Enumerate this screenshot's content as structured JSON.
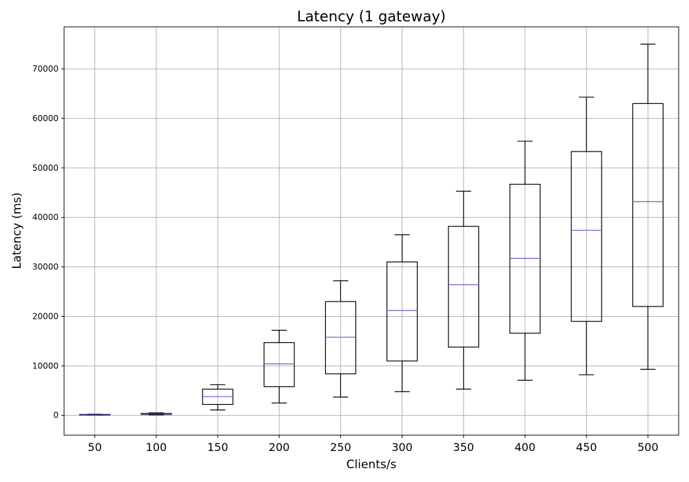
{
  "chart_data": {
    "type": "boxplot",
    "title": "Latency (1 gateway)",
    "xlabel": "Clients/s",
    "ylabel": "Latency (ms)",
    "ylim": [
      -4000,
      78500
    ],
    "yticks": [
      0,
      10000,
      20000,
      30000,
      40000,
      50000,
      60000,
      70000
    ],
    "grid": true,
    "median_color": "#6a5acd",
    "box_color": "#000000",
    "categories": [
      "50",
      "100",
      "150",
      "200",
      "250",
      "300",
      "350",
      "400",
      "450",
      "500"
    ],
    "boxes": [
      {
        "whisker_low": 50,
        "q1": 100,
        "median": 150,
        "q3": 200,
        "whisker_high": 250
      },
      {
        "whisker_low": 100,
        "q1": 200,
        "median": 300,
        "q3": 400,
        "whisker_high": 500
      },
      {
        "whisker_low": 1100,
        "q1": 2200,
        "median": 3800,
        "q3": 5300,
        "whisker_high": 6200
      },
      {
        "whisker_low": 2500,
        "q1": 5800,
        "median": 10400,
        "q3": 14700,
        "whisker_high": 17200
      },
      {
        "whisker_low": 3700,
        "q1": 8400,
        "median": 15800,
        "q3": 23000,
        "whisker_high": 27200
      },
      {
        "whisker_low": 4800,
        "q1": 11000,
        "median": 21200,
        "q3": 31000,
        "whisker_high": 36500
      },
      {
        "whisker_low": 5300,
        "q1": 13800,
        "median": 26400,
        "q3": 38200,
        "whisker_high": 45300
      },
      {
        "whisker_low": 7100,
        "q1": 16600,
        "median": 31700,
        "q3": 46700,
        "whisker_high": 55400
      },
      {
        "whisker_low": 8200,
        "q1": 19000,
        "median": 37400,
        "q3": 53300,
        "whisker_high": 64300
      },
      {
        "whisker_low": 9300,
        "q1": 22000,
        "median": 43200,
        "q3": 63000,
        "whisker_high": 75000
      }
    ]
  }
}
